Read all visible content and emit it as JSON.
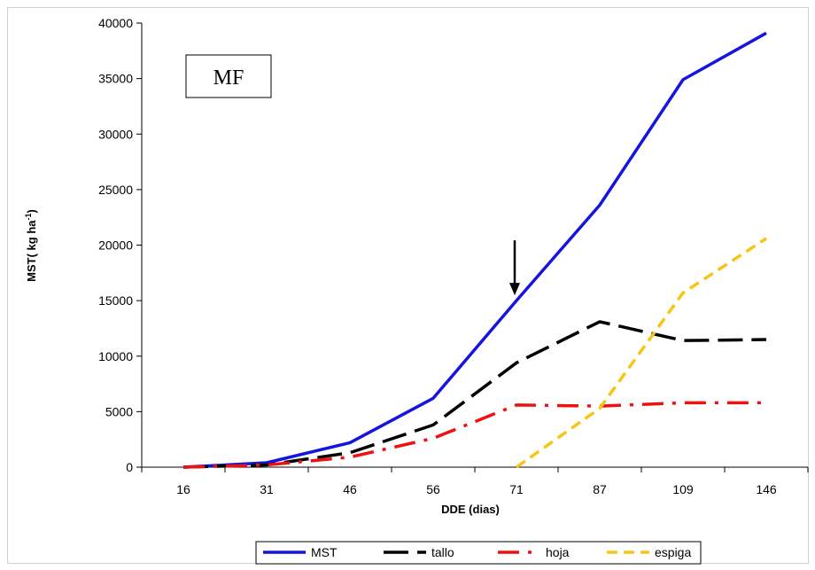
{
  "chart_data": {
    "type": "line",
    "panel_label": "MF",
    "categories": [
      "16",
      "31",
      "46",
      "56",
      "71",
      "87",
      "109",
      "146"
    ],
    "xlabel": "DDE (dias)",
    "ylabel": "MST( kg ha",
    "ylabel_sup": "-1",
    "ylabel_tail": ")",
    "ylim": [
      0,
      40000
    ],
    "yticks": [
      0,
      5000,
      10000,
      15000,
      20000,
      25000,
      30000,
      35000,
      40000
    ],
    "grid": false,
    "legend_position": "bottom",
    "arrow_marker_category": "71",
    "series": [
      {
        "name": "MST",
        "color": "#1515e0",
        "dash": "",
        "values": [
          0,
          400,
          2200,
          6200,
          15000,
          23600,
          34900,
          39100
        ]
      },
      {
        "name": "tallo",
        "color": "#000000",
        "dash": "28,10",
        "values": [
          0,
          200,
          1300,
          3800,
          9400,
          13100,
          11400,
          11500
        ]
      },
      {
        "name": "hoja",
        "color": "#ee1111",
        "dash": "24,10,4,10",
        "values": [
          0,
          200,
          900,
          2600,
          5600,
          5500,
          5800,
          5800
        ]
      },
      {
        "name": "espiga",
        "color": "#f5c518",
        "dash": "12,7",
        "values": [
          null,
          null,
          null,
          null,
          0,
          5300,
          15700,
          20600
        ]
      }
    ]
  }
}
